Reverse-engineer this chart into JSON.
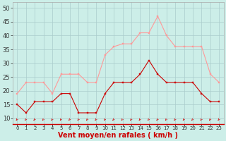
{
  "hours": [
    0,
    1,
    2,
    3,
    4,
    5,
    6,
    7,
    8,
    9,
    10,
    11,
    12,
    13,
    14,
    15,
    16,
    17,
    18,
    19,
    20,
    21,
    22,
    23
  ],
  "wind_avg": [
    15,
    12,
    16,
    16,
    16,
    19,
    19,
    12,
    12,
    12,
    19,
    23,
    23,
    23,
    26,
    31,
    26,
    23,
    23,
    23,
    23,
    19,
    16,
    16
  ],
  "wind_gust": [
    19,
    23,
    23,
    23,
    19,
    26,
    26,
    26,
    23,
    23,
    33,
    36,
    37,
    37,
    41,
    41,
    47,
    40,
    36,
    36,
    36,
    36,
    26,
    23
  ],
  "color_avg": "#cc0000",
  "color_gust": "#ff9999",
  "bg_color": "#cceee8",
  "grid_color": "#aacccc",
  "xlabel": "Vent moyen/en rafales ( km/h )",
  "yticks": [
    10,
    15,
    20,
    25,
    30,
    35,
    40,
    45,
    50
  ],
  "ylim": [
    8,
    52
  ],
  "xlim": [
    -0.5,
    23.5
  ],
  "xlabel_color": "#cc0000",
  "xlabel_fontsize": 7,
  "ytick_fontsize": 6,
  "xtick_fontsize": 5
}
